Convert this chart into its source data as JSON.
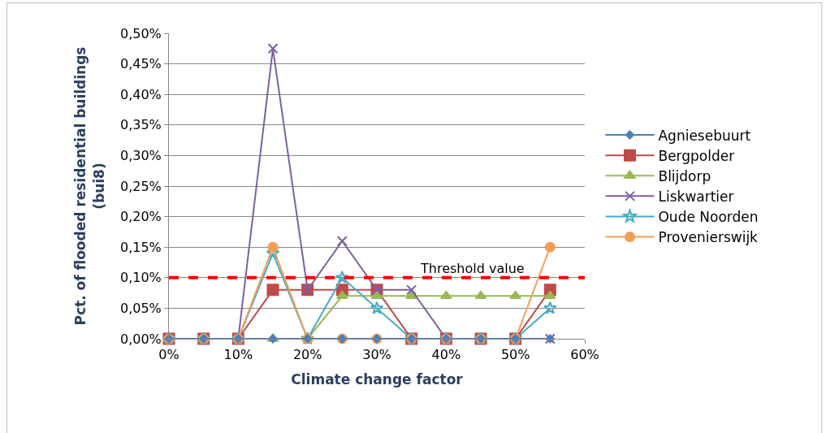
{
  "chart_data": {
    "type": "line",
    "xlabel": "Climate change factor",
    "ylabel": "Pct. of flooded residential buildings (bui8)",
    "x": [
      0,
      5,
      10,
      15,
      20,
      25,
      30,
      35,
      40,
      45,
      50,
      55
    ],
    "xlim": [
      0,
      60
    ],
    "xticks": [
      {
        "value": 0,
        "label": "0%"
      },
      {
        "value": 10,
        "label": "10%"
      },
      {
        "value": 20,
        "label": "20%"
      },
      {
        "value": 30,
        "label": "30%"
      },
      {
        "value": 40,
        "label": "40%"
      },
      {
        "value": 50,
        "label": "50%"
      },
      {
        "value": 60,
        "label": "60%"
      }
    ],
    "ylim": [
      0,
      0.5
    ],
    "yticks": [
      {
        "value": 0,
        "label": "0,00%"
      },
      {
        "value": 0.05,
        "label": "0,05%"
      },
      {
        "value": 0.1,
        "label": "0,10%"
      },
      {
        "value": 0.15,
        "label": "0,15%"
      },
      {
        "value": 0.2,
        "label": "0,20%"
      },
      {
        "value": 0.25,
        "label": "0,25%"
      },
      {
        "value": 0.3,
        "label": "0,30%"
      },
      {
        "value": 0.35,
        "label": "0,35%"
      },
      {
        "value": 0.4,
        "label": "0,40%"
      },
      {
        "value": 0.45,
        "label": "0,45%"
      },
      {
        "value": 0.5,
        "label": "0,50%"
      }
    ],
    "grid": "y",
    "legend": "right",
    "series": [
      {
        "name": "Agniesebuurt",
        "color": "#4a7ebb",
        "marker": "diamond",
        "values": [
          0,
          0,
          0,
          0,
          0,
          0,
          0,
          0,
          0,
          0,
          0,
          0
        ]
      },
      {
        "name": "Bergpolder",
        "color": "#be4b48",
        "marker": "square",
        "values": [
          0,
          0,
          0,
          0.08,
          0.08,
          0.08,
          0.08,
          0,
          0,
          0,
          0,
          0.08
        ]
      },
      {
        "name": "Blijdorp",
        "color": "#98b954",
        "marker": "triangle",
        "values": [
          0,
          0,
          0,
          0,
          0,
          0.07,
          0.07,
          0.07,
          0.07,
          0.07,
          0.07,
          0.07
        ]
      },
      {
        "name": "Liskwartier",
        "color": "#7d60a0",
        "marker": "cross",
        "values": [
          0,
          0,
          0,
          0.475,
          0.08,
          0.16,
          0.08,
          0.08,
          0,
          0,
          0,
          0
        ]
      },
      {
        "name": "Oude Noorden",
        "color": "#46aac5",
        "marker": "star",
        "values": [
          0,
          0,
          0,
          0.14,
          0,
          0.1,
          0.05,
          0,
          0,
          0,
          0,
          0.05
        ]
      },
      {
        "name": "Provenierswijk",
        "color": "#f59d56",
        "marker": "circle",
        "values": [
          0,
          0,
          0,
          0.15,
          0,
          0,
          0,
          0,
          0,
          0,
          0,
          0.15
        ]
      }
    ],
    "ref_lines": [
      {
        "axis": "y",
        "value": 0.1,
        "label": "Threshold value",
        "color": "#ff0000",
        "line_style": "dashed"
      }
    ]
  }
}
